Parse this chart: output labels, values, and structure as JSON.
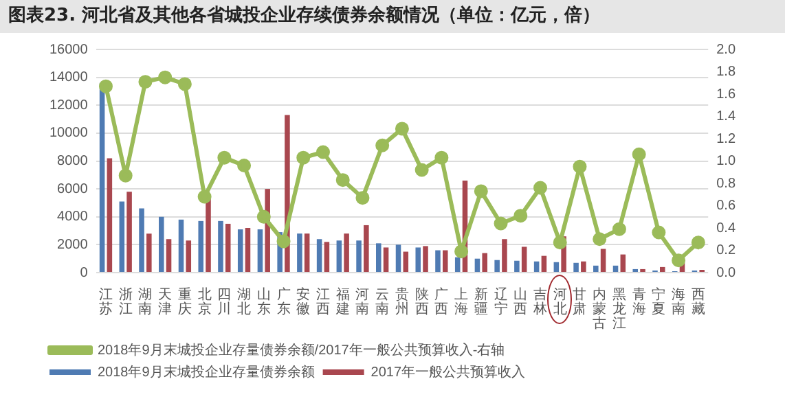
{
  "chart_data": {
    "type": "bar",
    "title": "图表23. 河北省及其他各省城投企业存续债券余额情况（单位：亿元，倍）",
    "categories": [
      "江苏",
      "浙江",
      "湖南",
      "天津",
      "重庆",
      "北京",
      "四川",
      "湖北",
      "山东",
      "广东",
      "安徽",
      "江西",
      "福建",
      "河南",
      "云南",
      "贵州",
      "陕西",
      "广西",
      "上海",
      "新疆",
      "辽宁",
      "山西",
      "吉林",
      "河北",
      "甘肃",
      "内蒙古",
      "黑龙江",
      "青海",
      "宁夏",
      "海南",
      "西藏"
    ],
    "series": [
      {
        "name": "2018年9月末城投企业存量债券余额",
        "color": "#4f7bb3",
        "values": [
          13600,
          5100,
          4600,
          4000,
          3800,
          3700,
          3700,
          3100,
          3100,
          2900,
          2800,
          2400,
          2300,
          2300,
          2100,
          2000,
          1800,
          1600,
          1100,
          1000,
          900,
          850,
          800,
          750,
          700,
          500,
          500,
          250,
          150,
          100,
          150
        ]
      },
      {
        "name": "2017年一般公共预算收入",
        "color": "#a9474f",
        "values": [
          8200,
          5800,
          2800,
          2400,
          2300,
          5400,
          3500,
          3200,
          6000,
          11300,
          2800,
          2200,
          2800,
          3400,
          1800,
          1500,
          1900,
          1600,
          6600,
          1400,
          2400,
          1850,
          1200,
          2600,
          800,
          1700,
          1300,
          250,
          400,
          700,
          200
        ]
      },
      {
        "name": "2018年9月末城投企业存量债券余额/2017年一般公共预算收入-右轴",
        "type": "line",
        "axis": "y2",
        "color": "#9bbb59",
        "values": [
          1.67,
          0.87,
          1.71,
          1.75,
          1.69,
          0.68,
          1.03,
          0.96,
          0.5,
          0.28,
          1.03,
          1.08,
          0.83,
          0.67,
          1.14,
          1.29,
          0.92,
          1.03,
          0.19,
          0.73,
          0.44,
          0.51,
          0.76,
          0.27,
          0.95,
          0.3,
          0.39,
          1.06,
          0.36,
          0.11,
          0.27
        ]
      }
    ],
    "ylim": [
      0,
      16000
    ],
    "yticks": [
      0,
      2000,
      4000,
      6000,
      8000,
      10000,
      12000,
      14000,
      16000
    ],
    "y2lim": [
      0,
      2
    ],
    "y2ticks": [
      {
        "value": 0,
        "label": "0.0"
      },
      0.2,
      0.4,
      0.6,
      0.8,
      {
        "value": 1,
        "label": "1.0"
      },
      1.2,
      1.4,
      1.6,
      1.8,
      {
        "value": 2,
        "label": "2.0"
      }
    ],
    "grid": "y",
    "legend": "bottom",
    "marker": "circle",
    "line_style": "solid"
  }
}
